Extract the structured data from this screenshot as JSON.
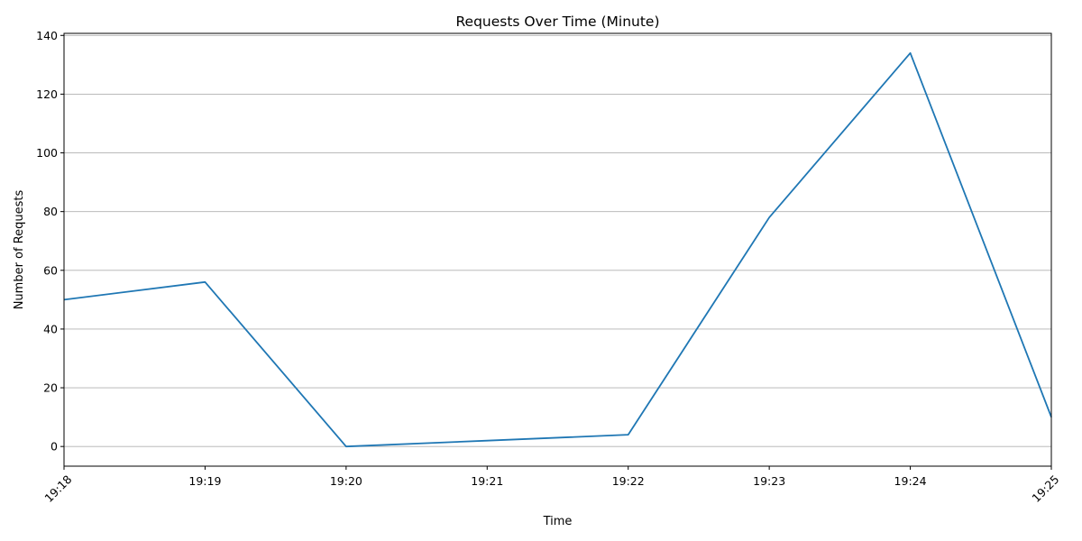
{
  "chart_data": {
    "type": "line",
    "title": "Requests Over Time (Minute)",
    "xlabel": "Time",
    "ylabel": "Number of Requests",
    "x": [
      "19:18",
      "19:19",
      "19:20",
      "19:21",
      "19:22",
      "19:23",
      "19:24",
      "19:25"
    ],
    "series": [
      {
        "values": [
          50,
          56,
          0,
          2,
          4,
          78,
          134,
          10
        ],
        "color": "#1f77b4"
      }
    ],
    "xticks": [
      "19:18",
      "19:19",
      "19:20",
      "19:21",
      "19:22",
      "19:23",
      "19:24",
      "19:25"
    ],
    "yticks": [
      0,
      20,
      40,
      60,
      80,
      100,
      120,
      140
    ],
    "ylim": [
      -6.7,
      140.7
    ],
    "grid": "y-only"
  }
}
